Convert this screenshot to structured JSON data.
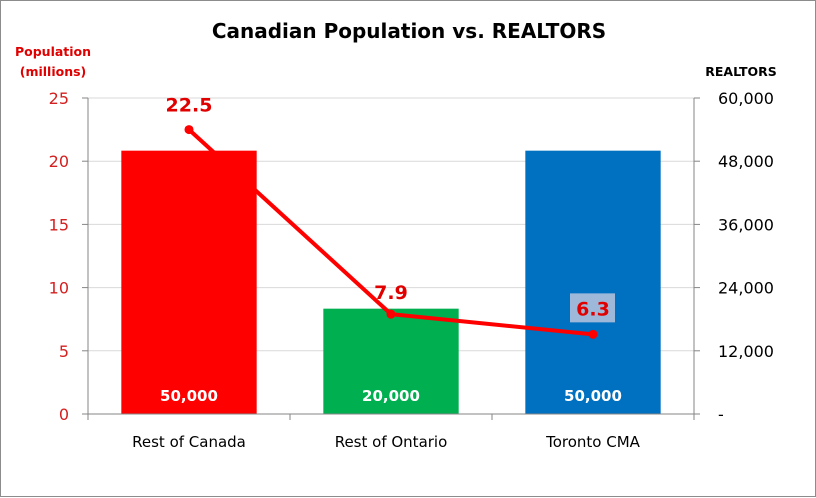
{
  "chart_data": {
    "type": "bar",
    "title": "Canadian Population vs. REALTORS",
    "categories": [
      "Rest of Canada",
      "Rest of Ontario",
      "Toronto CMA"
    ],
    "left_axis": {
      "label_line1": "Population",
      "label_line2": "(millions)",
      "range": [
        0,
        25
      ],
      "ticks": [
        0,
        5,
        10,
        15,
        20,
        25
      ],
      "tick_labels": [
        "0",
        "5",
        "10",
        "15",
        "20",
        "25"
      ],
      "color": "#e00000"
    },
    "right_axis": {
      "label": "REALTORS",
      "range": [
        0,
        60000
      ],
      "ticks": [
        0,
        12000,
        24000,
        36000,
        48000,
        60000
      ],
      "tick_labels": [
        "-",
        "12,000",
        "24,000",
        "36,000",
        "48,000",
        "60,000"
      ]
    },
    "series": [
      {
        "name": "REALTORS",
        "type": "bar",
        "axis": "right",
        "values": [
          50000,
          20000,
          50000
        ],
        "labels": [
          "50,000",
          "20,000",
          "50,000"
        ],
        "colors": [
          "#ff0000",
          "#00b050",
          "#0070c0"
        ]
      },
      {
        "name": "Population (millions)",
        "type": "line",
        "axis": "left",
        "values": [
          22.5,
          7.9,
          6.3
        ],
        "labels": [
          "22.5",
          "7.9",
          "6.3"
        ],
        "color": "#ff0000"
      }
    ],
    "grid": true,
    "legend": "none"
  }
}
